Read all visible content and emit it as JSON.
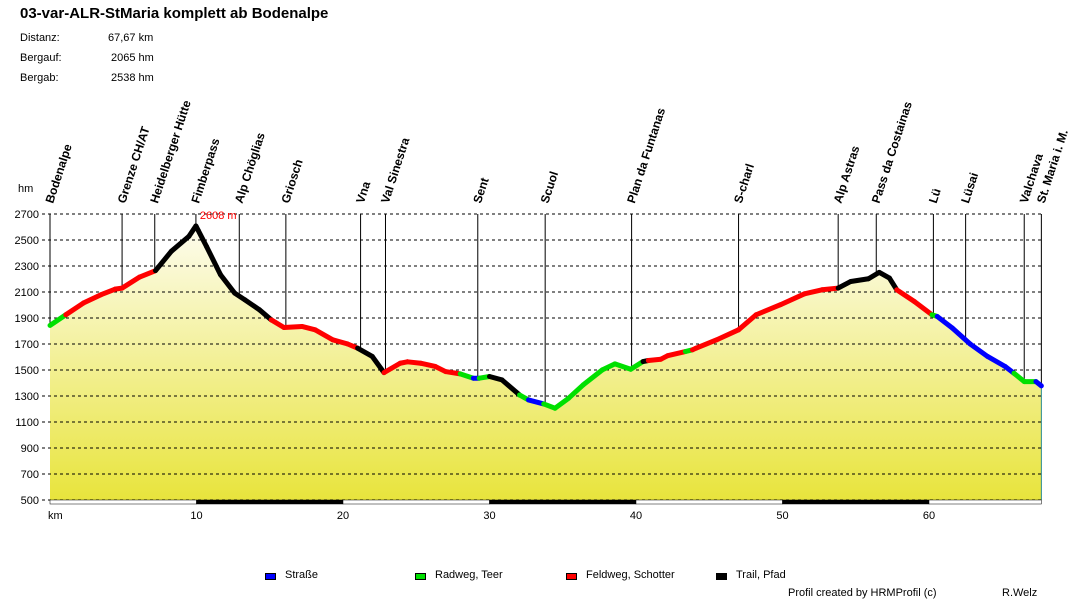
{
  "title": "03-var-ALR-StMaria komplett ab Bodenalpe",
  "stats": [
    {
      "label": "Distanz:",
      "value": "67,67 km"
    },
    {
      "label": "Bergauf:",
      "value": "2065 hm"
    },
    {
      "label": "Bergab:",
      "value": "2538 hm"
    }
  ],
  "chart_data": {
    "type": "area",
    "ylabel": "hm",
    "xlabel": "km",
    "xlim": [
      0,
      67.67
    ],
    "ylim": [
      500,
      2700
    ],
    "y_ticks": [
      500,
      700,
      900,
      1100,
      1300,
      1500,
      1700,
      1900,
      2100,
      2300,
      2500,
      2700
    ],
    "x_ticks": [
      10,
      20,
      30,
      40,
      50,
      60
    ],
    "grid": true,
    "max_label": "2608 m",
    "max_point": {
      "km": 9.96,
      "elev": 2608
    },
    "colors": {
      "strasse": "#0000ff",
      "radweg": "#00e000",
      "feldweg": "#ff0000",
      "trail": "#000000",
      "fill_top": "#fdfcee",
      "fill_bottom": "#e8e43c"
    },
    "waypoints": [
      {
        "name": "Bodenalpe",
        "km": 0
      },
      {
        "name": "Grenze CH/AT",
        "km": 4.92
      },
      {
        "name": "Heidelberger Hütte",
        "km": 7.15
      },
      {
        "name": "Fimberpass",
        "km": 9.96
      },
      {
        "name": "Alp Chöglias",
        "km": 12.92
      },
      {
        "name": "Griosch",
        "km": 16.1
      },
      {
        "name": "Vna",
        "km": 21.2
      },
      {
        "name": "Val Sinestra",
        "km": 22.9
      },
      {
        "name": "Sent",
        "km": 29.2
      },
      {
        "name": "Scuol",
        "km": 33.8
      },
      {
        "name": "Plan da Funtanas",
        "km": 39.7
      },
      {
        "name": "S-charl",
        "km": 47.0
      },
      {
        "name": "Alp Astras",
        "km": 53.8
      },
      {
        "name": "Pass da Costainas",
        "km": 56.4
      },
      {
        "name": "Lü",
        "km": 60.3
      },
      {
        "name": "Lüsai",
        "km": 62.5
      },
      {
        "name": "Valchava",
        "km": 66.5
      },
      {
        "name": "St. Maria i. M.",
        "km": 67.67
      }
    ],
    "profile": [
      [
        0,
        1843,
        "radweg"
      ],
      [
        1.08,
        1925,
        "feldweg"
      ],
      [
        2.28,
        2015,
        "feldweg"
      ],
      [
        3.48,
        2079,
        "feldweg"
      ],
      [
        4.44,
        2122,
        "feldweg"
      ],
      [
        4.92,
        2130,
        "feldweg"
      ],
      [
        6.12,
        2215,
        "feldweg"
      ],
      [
        7.2,
        2264,
        "trail"
      ],
      [
        8.28,
        2413,
        "trail"
      ],
      [
        9.48,
        2528,
        "trail"
      ],
      [
        9.96,
        2608,
        "trail"
      ],
      [
        10.68,
        2451,
        "trail"
      ],
      [
        11.64,
        2233,
        "trail"
      ],
      [
        12.6,
        2092,
        "trail"
      ],
      [
        13.3,
        2040,
        "trail"
      ],
      [
        14.3,
        1963,
        "trail"
      ],
      [
        15.1,
        1886,
        "feldweg"
      ],
      [
        15.97,
        1827,
        "feldweg"
      ],
      [
        17.2,
        1835,
        "feldweg"
      ],
      [
        18.1,
        1809,
        "feldweg"
      ],
      [
        19.3,
        1732,
        "feldweg"
      ],
      [
        20.3,
        1701,
        "feldweg"
      ],
      [
        21.0,
        1668,
        "trail"
      ],
      [
        22.0,
        1604,
        "trail"
      ],
      [
        22.8,
        1480,
        "feldweg"
      ],
      [
        23.9,
        1552,
        "feldweg"
      ],
      [
        24.4,
        1563,
        "feldweg"
      ],
      [
        25.3,
        1552,
        "feldweg"
      ],
      [
        26.3,
        1527,
        "feldweg"
      ],
      [
        27.0,
        1488,
        "feldweg"
      ],
      [
        28.0,
        1470,
        "radweg"
      ],
      [
        28.9,
        1437,
        "strasse"
      ],
      [
        29.3,
        1437,
        "radweg"
      ],
      [
        30.0,
        1450,
        "trail"
      ],
      [
        30.85,
        1424,
        "trail"
      ],
      [
        32.05,
        1308,
        "radweg"
      ],
      [
        32.66,
        1270,
        "strasse"
      ],
      [
        33.7,
        1239,
        "radweg"
      ],
      [
        34.47,
        1206,
        "radweg"
      ],
      [
        35.4,
        1283,
        "radweg"
      ],
      [
        36.4,
        1386,
        "radweg"
      ],
      [
        37.7,
        1501,
        "radweg"
      ],
      [
        38.56,
        1547,
        "radweg"
      ],
      [
        39.64,
        1506,
        "radweg"
      ],
      [
        40.48,
        1565,
        "trail"
      ],
      [
        40.84,
        1573,
        "feldweg"
      ],
      [
        41.7,
        1583,
        "feldweg"
      ],
      [
        42.16,
        1610,
        "feldweg"
      ],
      [
        43.37,
        1642,
        "radweg"
      ],
      [
        43.85,
        1655,
        "feldweg"
      ],
      [
        44.1,
        1668,
        "feldweg"
      ],
      [
        45.5,
        1732,
        "feldweg"
      ],
      [
        47.0,
        1809,
        "feldweg"
      ],
      [
        48.2,
        1925,
        "feldweg"
      ],
      [
        49.86,
        2002,
        "feldweg"
      ],
      [
        51.5,
        2086,
        "feldweg"
      ],
      [
        52.7,
        2117,
        "feldweg"
      ],
      [
        53.8,
        2130,
        "trail"
      ],
      [
        54.66,
        2181,
        "trail"
      ],
      [
        55.87,
        2202,
        "trail"
      ],
      [
        56.6,
        2251,
        "trail"
      ],
      [
        57.3,
        2207,
        "trail"
      ],
      [
        57.8,
        2117,
        "feldweg"
      ],
      [
        59.0,
        2027,
        "feldweg"
      ],
      [
        60.2,
        1925,
        "radweg"
      ],
      [
        60.56,
        1912,
        "strasse"
      ],
      [
        61.6,
        1822,
        "strasse"
      ],
      [
        62.8,
        1701,
        "strasse"
      ],
      [
        64.0,
        1604,
        "strasse"
      ],
      [
        65.2,
        1527,
        "strasse"
      ],
      [
        65.8,
        1475,
        "radweg"
      ],
      [
        66.5,
        1411,
        "radweg"
      ],
      [
        67.3,
        1411,
        "strasse"
      ],
      [
        67.67,
        1378,
        "strasse"
      ]
    ]
  },
  "legend": [
    {
      "key": "strasse",
      "label": "Straße",
      "color": "#0000ff"
    },
    {
      "key": "radweg",
      "label": "Radweg, Teer",
      "color": "#00e000"
    },
    {
      "key": "feldweg",
      "label": "Feldweg, Schotter",
      "color": "#ff0000"
    },
    {
      "key": "trail",
      "label": "Trail, Pfad",
      "color": "#000000"
    }
  ],
  "footer": {
    "credit": "Profil created by HRMProfil (c)",
    "author": "R.Welz"
  }
}
